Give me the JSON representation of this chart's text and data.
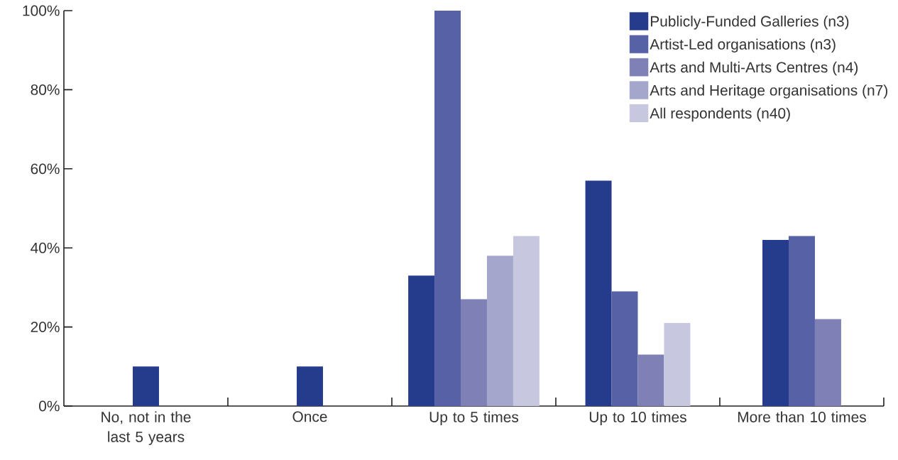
{
  "chart_data": {
    "type": "bar",
    "categories": [
      "No, not in the last 5 years",
      "Once",
      "Up to 5 times",
      "Up to 10 times",
      "More than 10 times"
    ],
    "series": [
      {
        "name": "Publicly-Funded Galleries (n3)",
        "color": "#253c8c",
        "values": [
          10,
          10,
          33,
          57,
          42
        ]
      },
      {
        "name": "Artist-Led organisations (n3)",
        "color": "#5761a5",
        "values": [
          null,
          null,
          100,
          29,
          43
        ]
      },
      {
        "name": "Arts and Multi-Arts Centres (n4)",
        "color": "#7e80b6",
        "values": [
          null,
          null,
          27,
          13,
          22
        ]
      },
      {
        "name": "Arts and Heritage organisations (n7)",
        "color": "#a4a6cc",
        "values": [
          null,
          null,
          38,
          null,
          null
        ]
      },
      {
        "name": "All respondents (n40)",
        "color": "#c7c8e0",
        "values": [
          null,
          null,
          43,
          21,
          null
        ]
      }
    ],
    "ylim": [
      0,
      100
    ],
    "yticks": [
      {
        "value": 0,
        "label": "0%"
      },
      {
        "value": 20,
        "label": "20%"
      },
      {
        "value": 40,
        "label": "40%"
      },
      {
        "value": 60,
        "label": "60%"
      },
      {
        "value": 80,
        "label": "80%"
      },
      {
        "value": 100,
        "label": "100%"
      }
    ],
    "legend": "top right"
  }
}
